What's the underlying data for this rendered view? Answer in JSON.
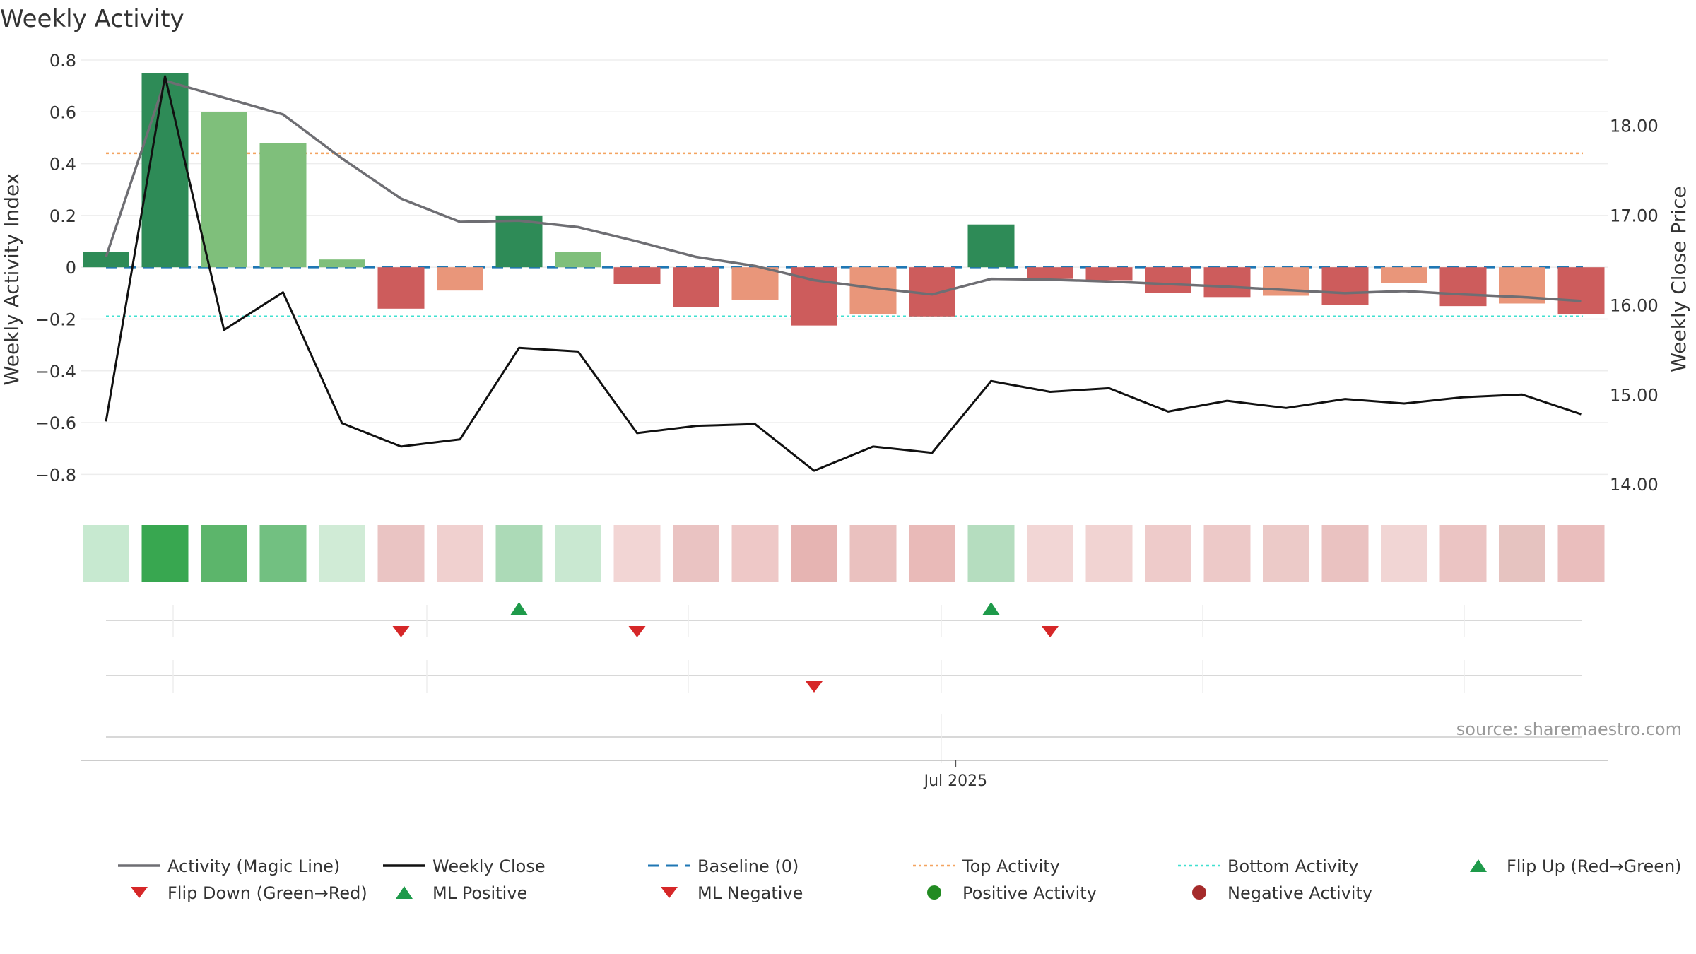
{
  "chart_data": {
    "type": "bar",
    "title": "Weekly Activity",
    "ylabel_left": "Weekly Activity Index",
    "ylabel_right": "Weekly Close Price",
    "ylim_left": [
      -0.9,
      0.8
    ],
    "yticks_left": [
      0.8,
      0.6,
      0.4,
      0.2,
      0,
      -0.2,
      -0.4,
      -0.6,
      -0.8
    ],
    "ytick_labels_left": [
      "0.8",
      "0.6",
      "0.4",
      "0.2",
      "0",
      "−0.2",
      "−0.4",
      "−0.6",
      "−0.8"
    ],
    "ylim_right": [
      13.82,
      18.73
    ],
    "yticks_right": [
      18,
      17,
      16,
      15,
      14
    ],
    "ytick_labels_right": [
      "18.00",
      "17.00",
      "16.00",
      "15.00",
      "14.00"
    ],
    "x_tick_label": "Jul 2025",
    "x_tick_week_index": 14.4,
    "weeks": 26,
    "activity": [
      0.06,
      0.75,
      0.6,
      0.48,
      0.03,
      -0.16,
      -0.09,
      0.2,
      0.06,
      -0.065,
      -0.155,
      -0.125,
      -0.225,
      -0.18,
      -0.19,
      0.165,
      -0.045,
      -0.05,
      -0.1,
      -0.115,
      -0.11,
      -0.145,
      -0.06,
      -0.15,
      -0.14,
      -0.18
    ],
    "bar_colors": [
      "#2e8b57",
      "#2e8b57",
      "#7fbf7b",
      "#7fbf7b",
      "#7fbf7b",
      "#cd5c5c",
      "#e9967a",
      "#2e8b57",
      "#7fbf7b",
      "#cd5c5c",
      "#cd5c5c",
      "#e9967a",
      "#cd5c5c",
      "#e9967a",
      "#cd5c5c",
      "#2e8b57",
      "#cd5c5c",
      "#cd5c5c",
      "#cd5c5c",
      "#cd5c5c",
      "#e9967a",
      "#cd5c5c",
      "#e9967a",
      "#cd5c5c",
      "#e9967a",
      "#cd5c5c"
    ],
    "magic_line": [
      0.04,
      0.72,
      0.655,
      0.59,
      0.42,
      0.265,
      0.175,
      0.18,
      0.155,
      0.1,
      0.04,
      0.005,
      -0.05,
      -0.08,
      -0.105,
      -0.045,
      -0.048,
      -0.055,
      -0.065,
      -0.075,
      -0.088,
      -0.1,
      -0.092,
      -0.105,
      -0.115,
      -0.13
    ],
    "weekly_close": [
      14.7,
      18.55,
      15.72,
      16.14,
      14.68,
      14.42,
      14.5,
      15.52,
      15.48,
      14.57,
      14.65,
      14.67,
      14.15,
      14.42,
      14.35,
      15.15,
      15.03,
      15.07,
      14.81,
      14.93,
      14.85,
      14.95,
      14.9,
      14.97,
      15.0,
      14.78
    ],
    "heat_colors": [
      "#c7e9d0",
      "#38a750",
      "#5cb56b",
      "#72c081",
      "#d0ebd6",
      "#eac4c3",
      "#f0d0cf",
      "#acdab7",
      "#c9e8d1",
      "#f2d5d4",
      "#eac3c2",
      "#eec8c7",
      "#e6b4b2",
      "#eac1bf",
      "#e9bab8",
      "#b5ddbf",
      "#f2d6d5",
      "#f1d3d2",
      "#eecbca",
      "#edc9c8",
      "#eccac8",
      "#eac2c1",
      "#f1d5d4",
      "#ebc4c3",
      "#e6c3c0",
      "#eabebd"
    ],
    "baseline": 0,
    "top_activity": 0.44,
    "bottom_activity": -0.19,
    "flip_up_weeks": [
      7,
      15
    ],
    "flip_down_weeks": [
      5,
      9,
      16
    ],
    "ml_negative_weeks": [
      12
    ],
    "source_text": "source: sharemaestro.com",
    "colors": {
      "magic_line": "#6e6e73",
      "weekly_close": "#111111",
      "baseline": "#1f77b4",
      "top_activity": "#f4a460",
      "bottom_activity": "#40e0d0",
      "up_marker": "#1e9a4a",
      "down_marker": "#d62728",
      "positive_dot": "#228b22",
      "negative_dot": "#a52a2a"
    },
    "legend": [
      {
        "label": "Activity (Magic Line)",
        "type": "line",
        "color": "#6e6e73"
      },
      {
        "label": "Weekly Close",
        "type": "line",
        "color": "#111111"
      },
      {
        "label": "Baseline (0)",
        "type": "dash",
        "color": "#1f77b4"
      },
      {
        "label": "Top Activity",
        "type": "dot",
        "color": "#f4a460"
      },
      {
        "label": "Bottom Activity",
        "type": "dot",
        "color": "#40e0d0"
      },
      {
        "label": "Flip Up (Red→Green)",
        "type": "tri-up",
        "color": "#1e9a4a"
      },
      {
        "label": "Flip Down (Green→Red)",
        "type": "tri-down",
        "color": "#d62728"
      },
      {
        "label": "ML Positive",
        "type": "tri-up",
        "color": "#1e9a4a"
      },
      {
        "label": "ML Negative",
        "type": "tri-down",
        "color": "#d62728"
      },
      {
        "label": "Positive Activity",
        "type": "circle",
        "color": "#228b22"
      },
      {
        "label": "Negative Activity",
        "type": "circle",
        "color": "#a52a2a"
      }
    ]
  }
}
